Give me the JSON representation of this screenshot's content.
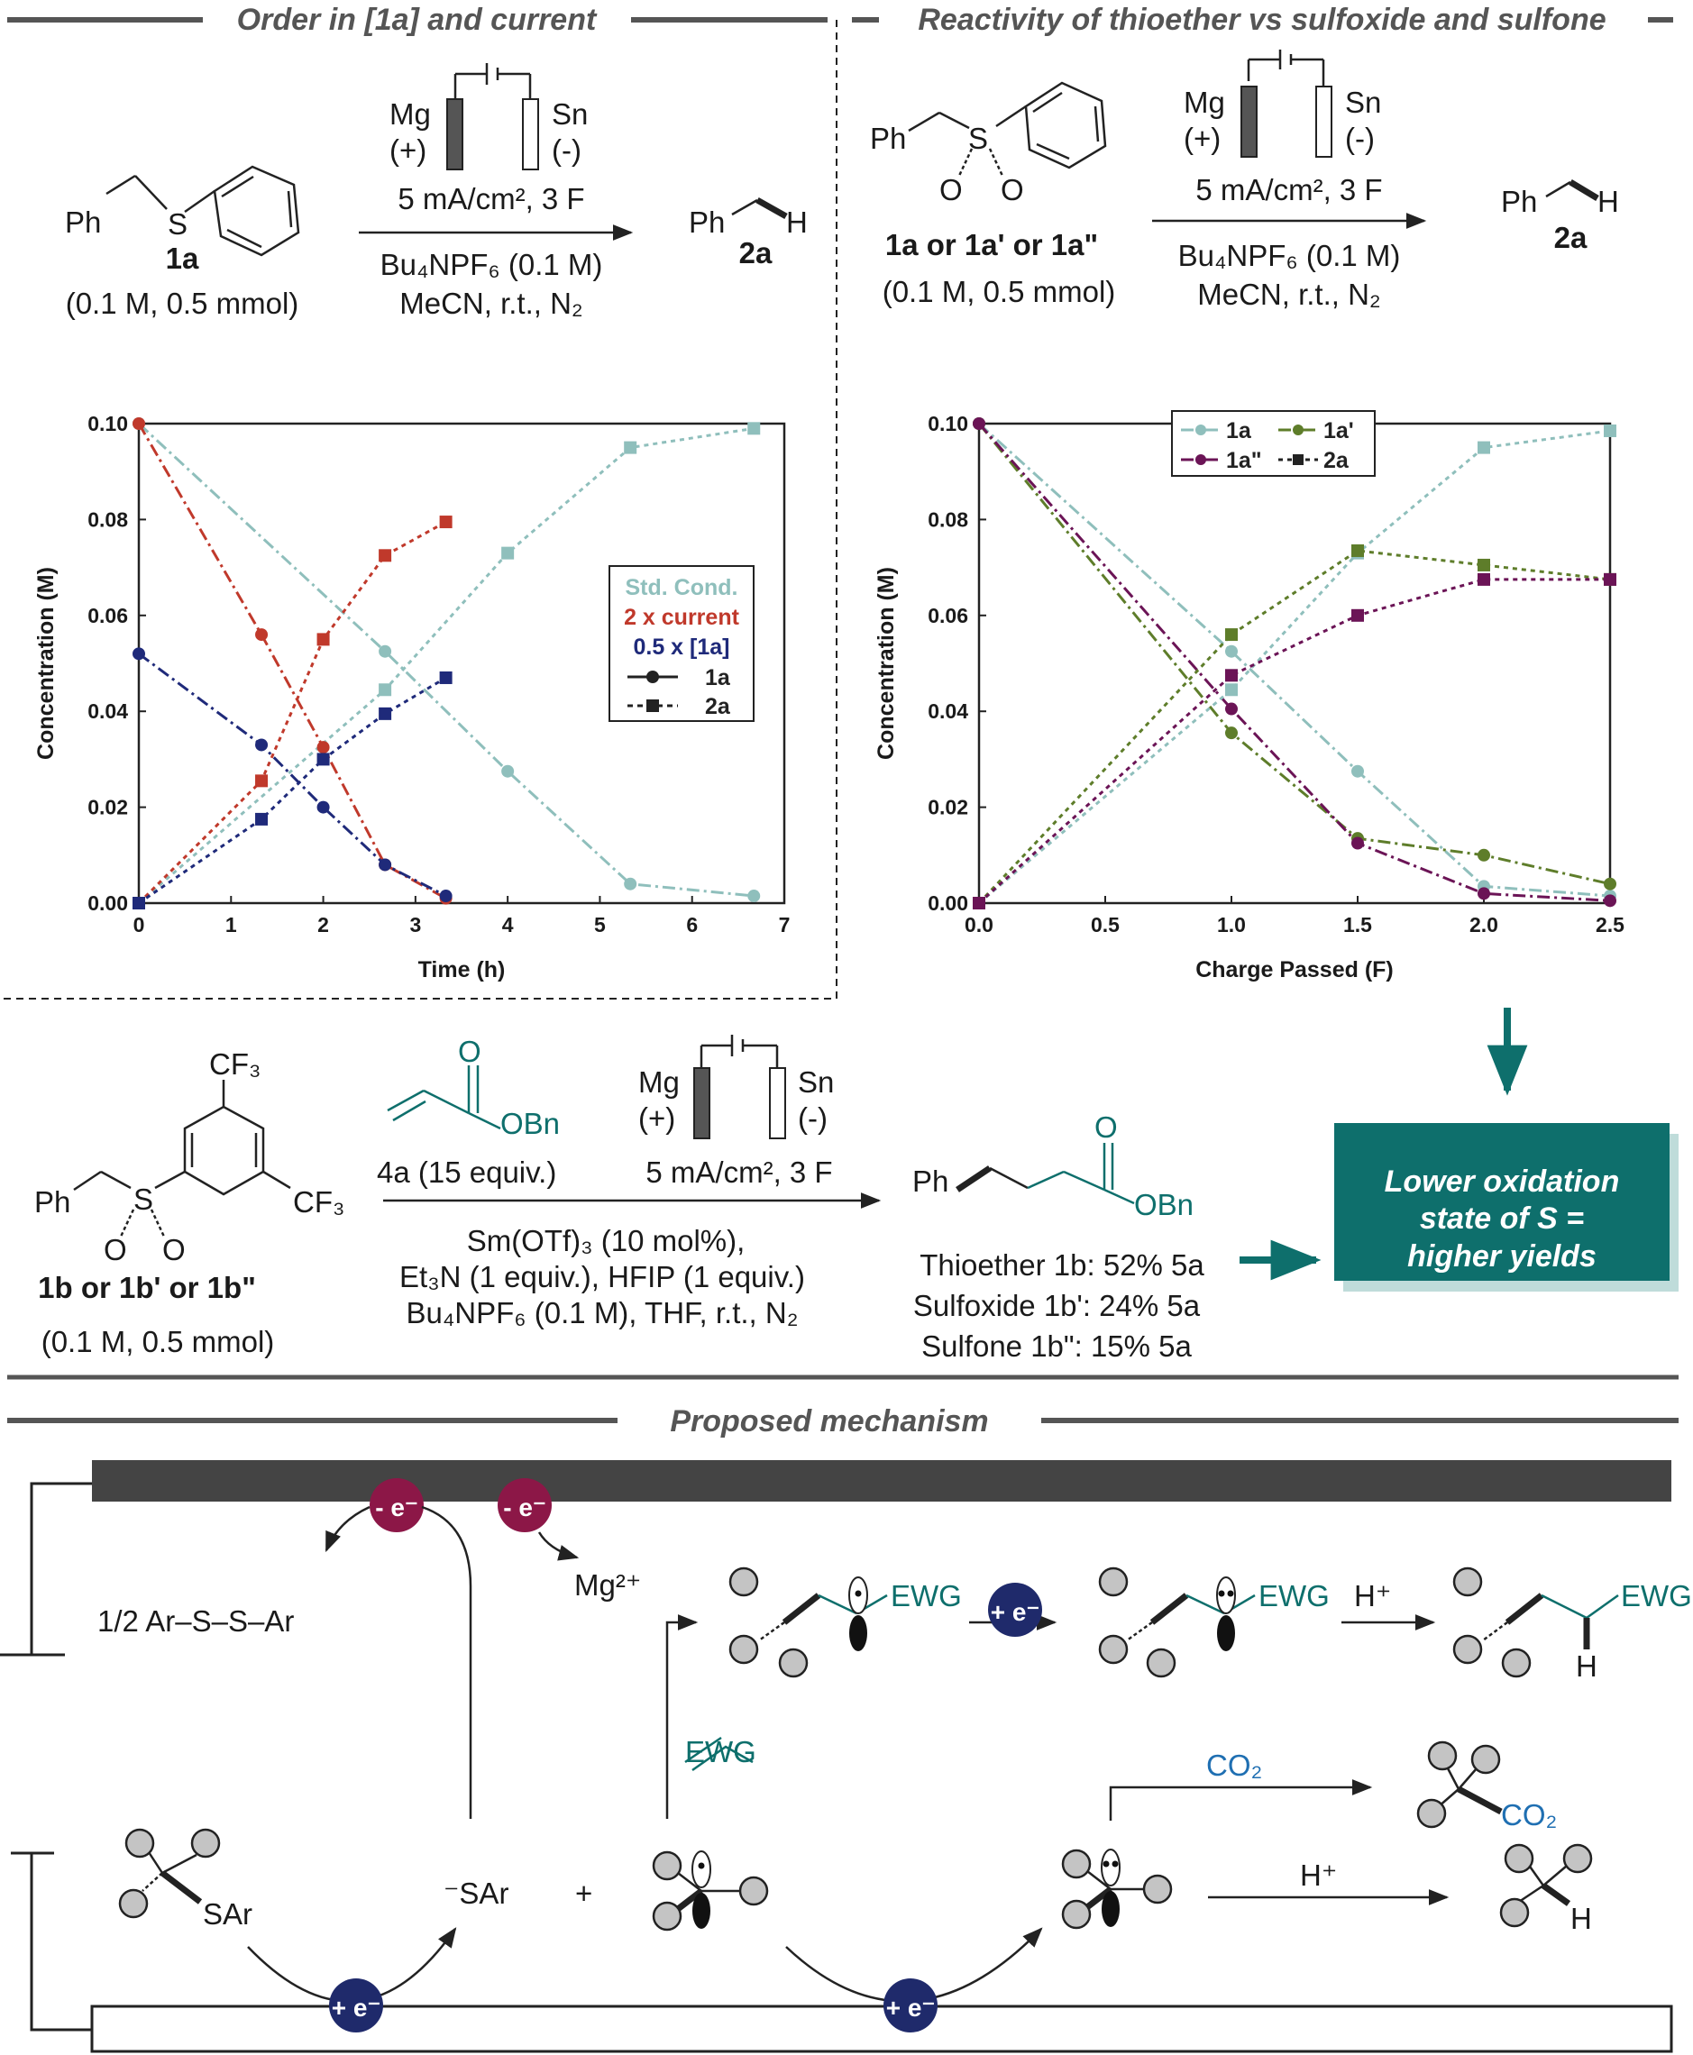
{
  "sections": {
    "order": "Order in [1a] and current",
    "reactivity": "Reactivity of thioether vs sulfoxide and sulfone",
    "mechanism": "Proposed mechanism"
  },
  "electrodes": {
    "anode": "Mg",
    "anode_sign": "(+)",
    "cathode": "Sn",
    "cathode_sign": "(-)"
  },
  "rxn1": {
    "substrate": "1a",
    "substrate_conc": "(0.1 M, 0.5 mmol)",
    "product": "2a",
    "current": "5 mA/cm², 3 F",
    "electrolyte": "Bu₄NPF₆ (0.1 M)",
    "conditions": "MeCN, r.t., N₂"
  },
  "rxn2": {
    "substrate": "1a or 1a' or 1a\"",
    "substrate_conc": "(0.1 M, 0.5 mmol)",
    "product": "2a",
    "current": "5 mA/cm², 3 F",
    "electrolyte": "Bu₄NPF₆ (0.1 M)",
    "conditions": "MeCN, r.t., N₂"
  },
  "rxn3": {
    "substrate": "1b or 1b' or 1b\"",
    "substrate_conc": "(0.1 M, 0.5 mmol)",
    "reagent": "4a (15 equiv.)",
    "current": "5 mA/cm², 3 F",
    "cond1": "Sm(OTf)₃ (10 mol%),",
    "cond2": "Et₃N (1 equiv.), HFIP (1 equiv.)",
    "cond3": "Bu₄NPF₆ (0.1 M), THF, r.t., N₂",
    "yield1": "Thioether 1b: 52% 5a",
    "yield2": "Sulfoxide 1b': 24% 5a",
    "yield3": "Sulfone 1b\": 15% 5a"
  },
  "conclusion": {
    "line1": "Lower oxidation",
    "line2": "state of S =",
    "line3": "higher yields"
  },
  "mechanism": {
    "disulfide": "1/2  Ar–S–S–Ar",
    "mg": "Mg²⁺",
    "thiolate": "⁻SAr",
    "plus": "+",
    "alkene": "EWG",
    "co2": "CO₂",
    "h_plus": "H⁺",
    "sar": "SAr",
    "ewg": "EWG",
    "h": "H",
    "electron": "e⁻",
    "oxidation": "- e⁻",
    "reduction": "+ e⁻"
  },
  "colors": {
    "teal": "#0e6f6c",
    "red": "#c0392b",
    "navy": "#1f2a7a",
    "lightteal": "#8fbfbc",
    "olive": "#5e7d2a",
    "purple": "#6b1456",
    "blue": "#1f6fb2",
    "maroon": "#8c1747"
  },
  "chart_data": [
    {
      "type": "line",
      "xlabel": "Time (h)",
      "ylabel": "Concentration (M)",
      "xlim": [
        0,
        7
      ],
      "ylim": [
        0,
        0.1
      ],
      "xticks": [
        0,
        1,
        2,
        3,
        4,
        5,
        6,
        7
      ],
      "yticks": [
        0.0,
        0.02,
        0.04,
        0.06,
        0.08,
        0.1
      ],
      "legend": {
        "entries": [
          "Std. Cond.",
          "2 x current",
          "0.5 x [1a]"
        ],
        "symbols": [
          "1a",
          "2a"
        ],
        "placement": "center-right"
      },
      "series": [
        {
          "name": "Std. Cond. 1a",
          "color": "#8fbfbc",
          "marker": "circle",
          "dash": "dashdot",
          "x": [
            0,
            2.67,
            4.0,
            5.33,
            6.67
          ],
          "y": [
            0.1,
            0.0525,
            0.0275,
            0.004,
            0.0015
          ]
        },
        {
          "name": "Std. Cond. 2a",
          "color": "#8fbfbc",
          "marker": "square",
          "dash": "dot",
          "x": [
            0,
            2.67,
            4.0,
            5.33,
            6.67
          ],
          "y": [
            0.0,
            0.0445,
            0.073,
            0.095,
            0.099
          ]
        },
        {
          "name": "2 x current 1a",
          "color": "#c0392b",
          "marker": "circle",
          "dash": "dashdot",
          "x": [
            0,
            1.33,
            2.0,
            2.67,
            3.33
          ],
          "y": [
            0.1,
            0.056,
            0.0325,
            0.008,
            0.001
          ]
        },
        {
          "name": "2 x current 2a",
          "color": "#c0392b",
          "marker": "square",
          "dash": "dot",
          "x": [
            0,
            1.33,
            2.0,
            2.67,
            3.33
          ],
          "y": [
            0.0,
            0.0255,
            0.055,
            0.0725,
            0.0795
          ]
        },
        {
          "name": "0.5 x [1a] 1a",
          "color": "#1f2a7a",
          "marker": "circle",
          "dash": "dashdot",
          "x": [
            0,
            1.33,
            2.0,
            2.67,
            3.33
          ],
          "y": [
            0.052,
            0.033,
            0.02,
            0.008,
            0.0015
          ]
        },
        {
          "name": "0.5 x [1a] 2a",
          "color": "#1f2a7a",
          "marker": "square",
          "dash": "dot",
          "x": [
            0,
            1.33,
            2.0,
            2.67,
            3.33
          ],
          "y": [
            0.0,
            0.0175,
            0.03,
            0.0395,
            0.047
          ]
        }
      ]
    },
    {
      "type": "line",
      "xlabel": "Charge Passed (F)",
      "ylabel": "Concentration (M)",
      "xlim": [
        0,
        2.5
      ],
      "ylim": [
        0,
        0.1
      ],
      "xticks": [
        0.0,
        0.5,
        1.0,
        1.5,
        2.0,
        2.5
      ],
      "yticks": [
        0.0,
        0.02,
        0.04,
        0.06,
        0.08,
        0.1
      ],
      "legend": {
        "entries": [
          "1a",
          "1a'",
          "1a\"",
          "2a"
        ],
        "placement": "top-left"
      },
      "series": [
        {
          "name": "1a",
          "color": "#8fbfbc",
          "marker": "circle",
          "dash": "dashdot",
          "x": [
            0,
            1.0,
            1.5,
            2.0,
            2.5
          ],
          "y": [
            0.1,
            0.0525,
            0.0275,
            0.0035,
            0.0015
          ]
        },
        {
          "name": "1a'",
          "color": "#5e7d2a",
          "marker": "circle",
          "dash": "dashdot",
          "x": [
            0,
            1.0,
            1.5,
            2.0,
            2.5
          ],
          "y": [
            0.1,
            0.0355,
            0.0135,
            0.01,
            0.004
          ]
        },
        {
          "name": "1a\"",
          "color": "#6b1456",
          "marker": "circle",
          "dash": "dashdot",
          "x": [
            0,
            1.0,
            1.5,
            2.0,
            2.5
          ],
          "y": [
            0.1,
            0.0405,
            0.0125,
            0.002,
            0.0005
          ]
        },
        {
          "name": "2a (from 1a)",
          "color": "#8fbfbc",
          "marker": "square",
          "dash": "dot",
          "x": [
            0,
            1.0,
            1.5,
            2.0,
            2.5
          ],
          "y": [
            0.0,
            0.0445,
            0.073,
            0.095,
            0.0985
          ]
        },
        {
          "name": "2a (from 1a')",
          "color": "#5e7d2a",
          "marker": "square",
          "dash": "dot",
          "x": [
            0,
            1.0,
            1.5,
            2.0,
            2.5
          ],
          "y": [
            0.0,
            0.056,
            0.0735,
            0.0705,
            0.0675
          ]
        },
        {
          "name": "2a (from 1a\")",
          "color": "#6b1456",
          "marker": "square",
          "dash": "dot",
          "x": [
            0,
            1.0,
            1.5,
            2.0,
            2.5
          ],
          "y": [
            0.0,
            0.0475,
            0.06,
            0.0675,
            0.0675
          ]
        }
      ]
    }
  ]
}
